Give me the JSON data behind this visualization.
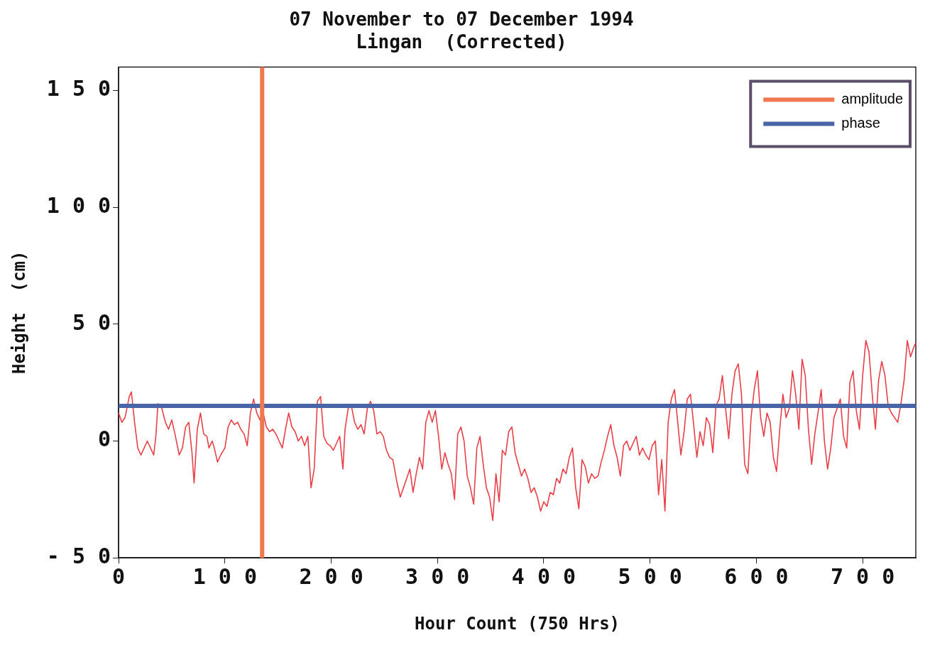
{
  "chart_data": {
    "type": "line",
    "title": "07 November to 07 December 1994",
    "subtitle": "Lingan  (Corrected)",
    "xlabel": "Hour Count (750 Hrs)",
    "ylabel": "Height  (cm)",
    "xlim": [
      0,
      750
    ],
    "xticks": [
      0,
      100,
      200,
      300,
      400,
      500,
      600,
      700
    ],
    "ylim": [
      -50,
      160
    ],
    "yticks": [
      -50,
      0,
      50,
      100,
      150
    ],
    "grid": false,
    "legend": "top right",
    "marker": "none",
    "line_style": "solid",
    "series": [
      {
        "color": "#e8404a",
        "x": [
          0,
          3,
          6,
          10,
          12,
          15,
          18,
          21,
          24,
          27,
          30,
          33,
          35,
          37,
          40,
          44,
          47,
          50,
          53,
          57,
          60,
          63,
          66,
          69,
          71,
          74,
          77,
          80,
          83,
          85,
          88,
          90,
          93,
          96,
          100,
          103,
          106,
          109,
          112,
          115,
          118,
          121,
          124,
          127,
          130,
          133,
          136,
          139,
          142,
          145,
          148,
          151,
          154,
          157,
          160,
          163,
          166,
          169,
          172,
          175,
          178,
          181,
          184,
          187,
          190,
          193,
          196,
          199,
          202,
          205,
          208,
          211,
          213,
          216,
          219,
          222,
          225,
          228,
          231,
          234,
          237,
          240,
          243,
          246,
          249,
          252,
          255,
          258,
          262,
          265,
          268,
          271,
          274,
          277,
          280,
          283,
          286,
          289,
          292,
          295,
          298,
          301,
          304,
          307,
          310,
          313,
          316,
          319,
          322,
          325,
          328,
          331,
          334,
          337,
          340,
          343,
          346,
          349,
          352,
          355,
          358,
          361,
          364,
          367,
          370,
          373,
          376,
          379,
          382,
          385,
          388,
          391,
          394,
          397,
          400,
          403,
          406,
          409,
          412,
          415,
          418,
          421,
          424,
          427,
          430,
          433,
          436,
          439,
          442,
          445,
          448,
          451,
          454,
          457,
          460,
          463,
          466,
          469,
          472,
          475,
          478,
          481,
          484,
          487,
          490,
          493,
          496,
          499,
          502,
          505,
          508,
          511,
          514,
          517,
          520,
          523,
          526,
          529,
          532,
          535,
          538,
          541,
          544,
          547,
          550,
          553,
          556,
          559,
          562,
          565,
          568,
          571,
          574,
          577,
          580,
          583,
          586,
          589,
          592,
          595,
          598,
          601,
          604,
          607,
          610,
          613,
          616,
          619,
          622,
          625,
          628,
          631,
          634,
          637,
          640,
          643,
          646,
          649,
          652,
          655,
          658,
          661,
          664,
          667,
          670,
          673,
          676,
          679,
          682,
          685,
          688,
          691,
          694,
          697,
          700,
          703,
          706,
          709,
          712,
          715,
          718,
          721,
          724,
          727,
          730,
          733,
          736,
          739,
          742,
          745,
          748,
          750
        ],
        "values": [
          12,
          8,
          10,
          19,
          21,
          8,
          -3,
          -6,
          -3,
          0,
          -3,
          -6,
          2,
          16,
          15,
          8,
          5,
          9,
          3,
          -6,
          -3,
          6,
          8,
          -5,
          -18,
          5,
          12,
          3,
          2,
          -3,
          0,
          -3,
          -9,
          -6,
          -3,
          6,
          9,
          7,
          8,
          5,
          3,
          -2,
          12,
          18,
          12,
          9,
          12,
          6,
          4,
          5,
          3,
          0,
          -3,
          5,
          12,
          6,
          4,
          0,
          2,
          -2,
          2,
          -20,
          -12,
          17,
          19,
          2,
          -1,
          -2,
          -4,
          -1,
          2,
          -12,
          5,
          14,
          15,
          8,
          5,
          7,
          3,
          14,
          17,
          13,
          3,
          4,
          2,
          -4,
          -7,
          -8,
          -18,
          -24,
          -20,
          -16,
          -12,
          -22,
          -14,
          -7,
          -12,
          8,
          13,
          8,
          13,
          2,
          -12,
          -5,
          -10,
          -14,
          -25,
          3,
          6,
          0,
          -15,
          -20,
          -27,
          -3,
          2,
          -10,
          -20,
          -24,
          -34,
          -14,
          -26,
          -4,
          -6,
          4,
          6,
          -5,
          -10,
          -15,
          -12,
          -16,
          -22,
          -20,
          -24,
          -30,
          -26,
          -28,
          -22,
          -23,
          -16,
          -18,
          -12,
          -14,
          -7,
          -3,
          -20,
          -29,
          -8,
          -11,
          -18,
          -14,
          -16,
          -15,
          -9,
          -4,
          2,
          7,
          -2,
          -7,
          -15,
          -2,
          0,
          -4,
          -1,
          2,
          -6,
          -3,
          -6,
          -8,
          -2,
          0,
          -23,
          -8,
          -30,
          8,
          18,
          22,
          8,
          -6,
          4,
          18,
          20,
          7,
          -7,
          4,
          -2,
          10,
          7,
          -5,
          15,
          18,
          28,
          14,
          1,
          20,
          30,
          33,
          20,
          -10,
          -14,
          10,
          22,
          30,
          10,
          2,
          12,
          8,
          -7,
          -13,
          5,
          20,
          10,
          14,
          30,
          20,
          5,
          35,
          28,
          5,
          -10,
          3,
          12,
          22,
          0,
          -12,
          -3,
          10,
          14,
          18,
          2,
          -3,
          25,
          30,
          13,
          5,
          28,
          43,
          38,
          20,
          5,
          26,
          34,
          28,
          15,
          12,
          10,
          8,
          16,
          26,
          43,
          36,
          40,
          42
        ]
      },
      {
        "name": "amplitude",
        "color": "#f07850",
        "x": [
          135,
          135
        ],
        "values": [
          -50,
          160
        ]
      }
    ],
    "ref_lines": [
      {
        "axis": "y",
        "value": 15,
        "label": "phase",
        "color": "#4a64a8"
      }
    ]
  }
}
